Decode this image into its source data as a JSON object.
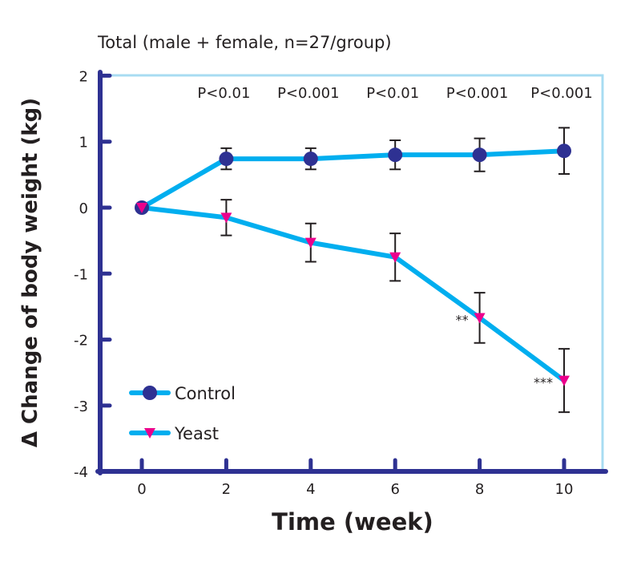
{
  "chart_data": {
    "type": "line",
    "title": "Total (male + female, n=27/group)",
    "xlabel": "Time (week)",
    "ylabel": "Δ Change of body weight (kg)",
    "xlim": [
      -1,
      11
    ],
    "ylim": [
      -4,
      2
    ],
    "x": [
      0,
      2,
      4,
      6,
      8,
      10
    ],
    "x_ticks": [
      "0",
      "2",
      "4",
      "6",
      "8",
      "10"
    ],
    "y_ticks": [
      "2",
      "1",
      "0",
      "-1",
      "-2",
      "-3",
      "-4"
    ],
    "y_tick_values": [
      2,
      1,
      0,
      -1,
      -2,
      -3,
      -4
    ],
    "grid": false,
    "legend_position": "bottom-left",
    "series": [
      {
        "name": "Control",
        "marker": "circle",
        "values": [
          0,
          0.74,
          0.74,
          0.8,
          0.8,
          0.86
        ],
        "errors": [
          0,
          0.16,
          0.16,
          0.22,
          0.25,
          0.35
        ]
      },
      {
        "name": "Yeast",
        "marker": "triangle-down",
        "values": [
          0,
          -0.15,
          -0.53,
          -0.75,
          -1.67,
          -2.62
        ],
        "errors": [
          0,
          0.27,
          0.29,
          0.36,
          0.38,
          0.48
        ]
      }
    ],
    "p_values": [
      {
        "x": 2,
        "label": "P<0.01"
      },
      {
        "x": 4,
        "label": "P<0.001"
      },
      {
        "x": 6,
        "label": "P<0.01"
      },
      {
        "x": 8,
        "label": "P<0.001"
      },
      {
        "x": 10,
        "label": "P<0.001"
      }
    ],
    "annotations": [
      {
        "x": 8,
        "y": -1.67,
        "label": "**"
      },
      {
        "x": 10,
        "y": -2.62,
        "label": "***"
      }
    ],
    "colors": {
      "line": "#00aeef",
      "control_marker": "#2e3192",
      "yeast_marker": "#ec008c",
      "axis": "#2e3192",
      "frame": "#a8dcf2",
      "error": "#231f20"
    }
  }
}
